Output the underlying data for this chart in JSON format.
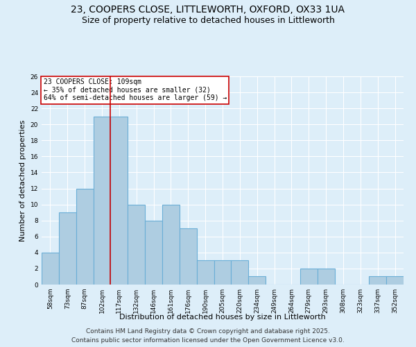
{
  "title_line1": "23, COOPERS CLOSE, LITTLEWORTH, OXFORD, OX33 1UA",
  "title_line2": "Size of property relative to detached houses in Littleworth",
  "xlabel": "Distribution of detached houses by size in Littleworth",
  "ylabel": "Number of detached properties",
  "bar_labels": [
    "58sqm",
    "73sqm",
    "87sqm",
    "102sqm",
    "117sqm",
    "132sqm",
    "146sqm",
    "161sqm",
    "176sqm",
    "190sqm",
    "205sqm",
    "220sqm",
    "234sqm",
    "249sqm",
    "264sqm",
    "279sqm",
    "293sqm",
    "308sqm",
    "323sqm",
    "337sqm",
    "352sqm"
  ],
  "bar_values": [
    4,
    9,
    12,
    21,
    21,
    10,
    8,
    10,
    7,
    3,
    3,
    3,
    1,
    0,
    0,
    2,
    2,
    0,
    0,
    1,
    1
  ],
  "bar_color": "#aecde1",
  "bar_edgecolor": "#6aaed6",
  "bar_linewidth": 0.8,
  "vline_x": 3.5,
  "vline_color": "#cc0000",
  "annotation_text": "23 COOPERS CLOSE: 109sqm\n← 35% of detached houses are smaller (32)\n64% of semi-detached houses are larger (59) →",
  "annotation_box_edgecolor": "#cc0000",
  "annotation_box_facecolor": "#ffffff",
  "ylim": [
    0,
    26
  ],
  "yticks": [
    0,
    2,
    4,
    6,
    8,
    10,
    12,
    14,
    16,
    18,
    20,
    22,
    24,
    26
  ],
  "background_color": "#ddeef9",
  "grid_color": "#ffffff",
  "footer_line1": "Contains HM Land Registry data © Crown copyright and database right 2025.",
  "footer_line2": "Contains public sector information licensed under the Open Government Licence v3.0.",
  "title_fontsize": 10,
  "subtitle_fontsize": 9,
  "tick_fontsize": 6.5,
  "label_fontsize": 8,
  "footer_fontsize": 6.5
}
